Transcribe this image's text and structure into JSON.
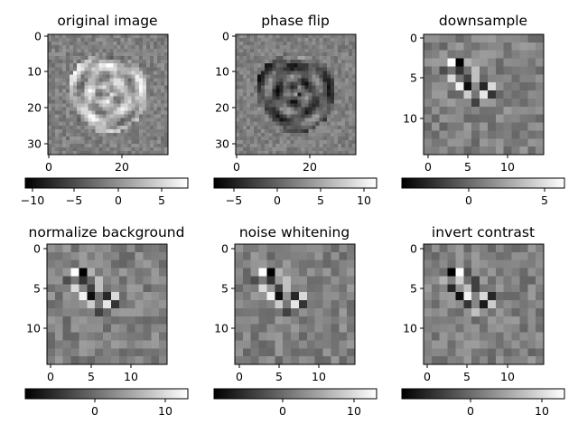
{
  "figure": {
    "panels": [
      {
        "title": "original image",
        "x_ticks": [
          "0",
          "20"
        ],
        "y_ticks": [
          "0",
          "10",
          "20",
          "30"
        ],
        "colorbar_ticks": [
          "−10",
          "−5",
          "0",
          "5"
        ]
      },
      {
        "title": "phase flip",
        "x_ticks": [
          "0",
          "20"
        ],
        "y_ticks": [
          "0",
          "10",
          "20",
          "30"
        ],
        "colorbar_ticks": [
          "−5",
          "0",
          "5",
          "10"
        ]
      },
      {
        "title": "downsample",
        "x_ticks": [
          "0",
          "5",
          "10"
        ],
        "y_ticks": [
          "0",
          "5",
          "10"
        ],
        "colorbar_ticks": [
          "0",
          "5"
        ]
      },
      {
        "title": "normalize background",
        "x_ticks": [
          "0",
          "5",
          "10"
        ],
        "y_ticks": [
          "0",
          "5",
          "10"
        ],
        "colorbar_ticks": [
          "0",
          "10"
        ]
      },
      {
        "title": "noise whitening",
        "x_ticks": [
          "0",
          "5",
          "10"
        ],
        "y_ticks": [
          "0",
          "5",
          "10"
        ],
        "colorbar_ticks": [
          "0",
          "10"
        ]
      },
      {
        "title": "invert contrast",
        "x_ticks": [
          "0",
          "5",
          "10"
        ],
        "y_ticks": [
          "0",
          "5",
          "10"
        ],
        "colorbar_ticks": [
          "0",
          "10"
        ]
      }
    ]
  },
  "chart_data": [
    {
      "type": "heatmap",
      "title": "original image",
      "grid_size": [
        33,
        33
      ],
      "colormap": "gray",
      "x_range": [
        -0.5,
        32.5
      ],
      "y_range": [
        -0.5,
        32.5
      ],
      "x_ticks": [
        0,
        20
      ],
      "y_ticks": [
        0,
        10,
        20,
        30
      ],
      "colorbar_range": [
        -10,
        8
      ],
      "colorbar_ticks": [
        -10,
        -5,
        0,
        5
      ]
    },
    {
      "type": "heatmap",
      "title": "phase flip",
      "grid_size": [
        33,
        33
      ],
      "colormap": "gray",
      "x_range": [
        -0.5,
        32.5
      ],
      "y_range": [
        -0.5,
        32.5
      ],
      "x_ticks": [
        0,
        20
      ],
      "y_ticks": [
        0,
        10,
        20,
        30
      ],
      "colorbar_range": [
        -6,
        11
      ],
      "colorbar_ticks": [
        -5,
        0,
        5,
        10
      ]
    },
    {
      "type": "heatmap",
      "title": "downsample",
      "grid_size": [
        15,
        15
      ],
      "colormap": "gray",
      "x_range": [
        -0.5,
        14.5
      ],
      "y_range": [
        -0.5,
        14.5
      ],
      "x_ticks": [
        0,
        5,
        10
      ],
      "y_ticks": [
        0,
        5,
        10
      ],
      "colorbar_range": [
        -7,
        7
      ],
      "colorbar_ticks": [
        0,
        5
      ]
    },
    {
      "type": "heatmap",
      "title": "normalize background",
      "grid_size": [
        15,
        15
      ],
      "colormap": "gray",
      "x_range": [
        -0.5,
        14.5
      ],
      "y_range": [
        -0.5,
        14.5
      ],
      "x_ticks": [
        0,
        5,
        10
      ],
      "y_ticks": [
        0,
        5,
        10
      ],
      "colorbar_range": [
        -9,
        13
      ],
      "colorbar_ticks": [
        0,
        10
      ]
    },
    {
      "type": "heatmap",
      "title": "noise whitening",
      "grid_size": [
        15,
        15
      ],
      "colormap": "gray",
      "x_range": [
        -0.5,
        14.5
      ],
      "y_range": [
        -0.5,
        14.5
      ],
      "x_ticks": [
        0,
        5,
        10
      ],
      "y_ticks": [
        0,
        5,
        10
      ],
      "colorbar_range": [
        -9,
        13
      ],
      "colorbar_ticks": [
        0,
        10
      ]
    },
    {
      "type": "heatmap",
      "title": "invert contrast",
      "grid_size": [
        15,
        15
      ],
      "colormap": "gray",
      "x_range": [
        -0.5,
        14.5
      ],
      "y_range": [
        -0.5,
        14.5
      ],
      "x_ticks": [
        0,
        5,
        10
      ],
      "y_ticks": [
        0,
        5,
        10
      ],
      "colorbar_range": [
        -9,
        13
      ],
      "colorbar_ticks": [
        0,
        10
      ]
    }
  ]
}
